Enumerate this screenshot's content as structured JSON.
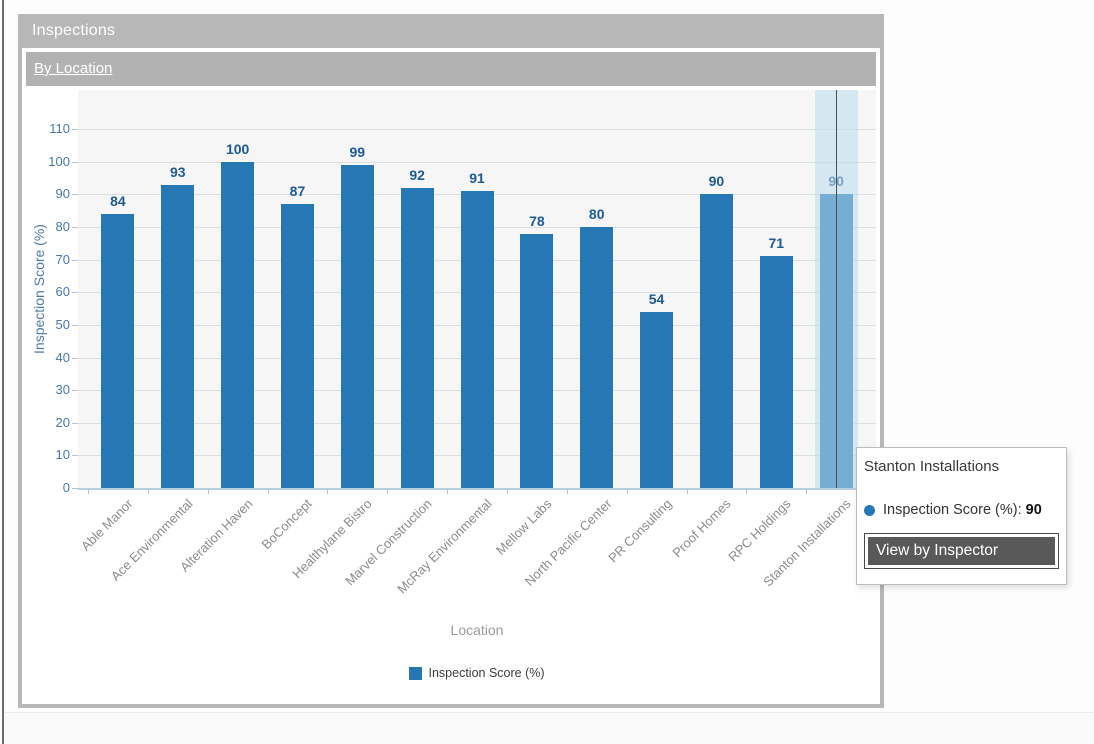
{
  "window": {
    "title": "Inspections",
    "subtitle_link": "By Location"
  },
  "chart_data": {
    "type": "bar",
    "categories": [
      "Able Manor",
      "Ace Environmental",
      "Alteration Haven",
      "BoConcept",
      "Healthylane Bistro",
      "Marvel Construction",
      "McRay Environmental",
      "Mellow Labs",
      "North Pacific Center",
      "PR Consulting",
      "Proof Homes",
      "RPC Holdings",
      "Stanton Installations"
    ],
    "series": [
      {
        "name": "Inspection Score (%)",
        "values": [
          84,
          93,
          100,
          87,
          99,
          92,
          91,
          78,
          80,
          54,
          90,
          71,
          90
        ]
      }
    ],
    "xlabel": "Location",
    "ylabel": "Inspection Score (%)",
    "ylim": [
      0,
      122
    ],
    "yticks": [
      0,
      10,
      20,
      30,
      40,
      50,
      60,
      70,
      80,
      90,
      100,
      110
    ],
    "grid": "horizontal",
    "legend_position": "bottom",
    "highlighted_category_index": 12
  },
  "colors": {
    "bar": "#2578b4",
    "value_label": "#1d5a94",
    "highlight_overlay": "rgba(186,218,236,0.55)",
    "titlebar": "#b7b7b7",
    "button_fill": "#595959"
  },
  "tooltip": {
    "title": "Stanton Installations",
    "series_label": "Inspection Score (%):",
    "value": "90",
    "button_label": "View by Inspector"
  },
  "legend": {
    "label": "Inspection Score (%)"
  }
}
